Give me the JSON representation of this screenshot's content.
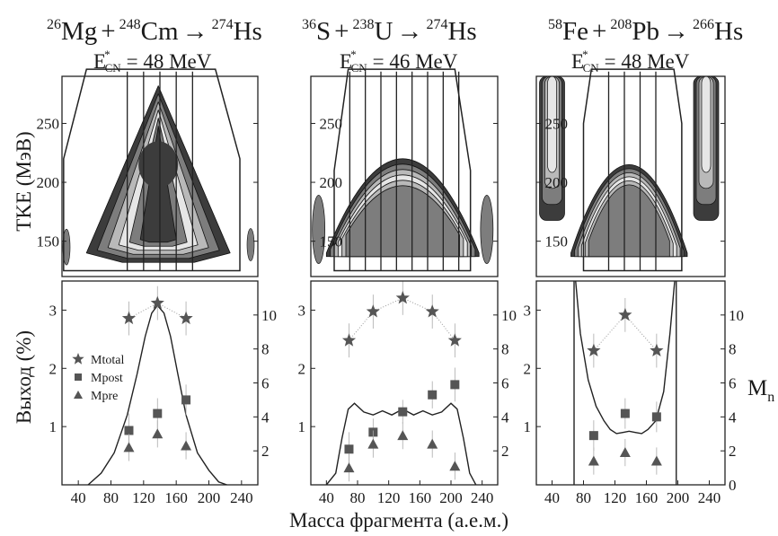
{
  "figure": {
    "xlabel": "Масса фрагмента (а.е.м.)",
    "ylabel_top": "TKE (МэВ)",
    "ylabel_bottom": "Выход (%)",
    "ylabel_right": "M",
    "ylabel_right_sub": "n"
  },
  "colors": {
    "frame": "#222222",
    "marker": "#555555",
    "curve": "#222222",
    "contour_dark": "#3c3c3c",
    "contour_mid": "#7d7d7d",
    "contour_light": "#b9b9b9",
    "contour_pale": "#e6e6e6"
  },
  "panels": [
    {
      "reaction": {
        "p_mass": "26",
        "p_sym": "Mg",
        "t_mass": "248",
        "t_sym": "Cm",
        "c_mass": "274",
        "c_sym": "Hs"
      },
      "energy": {
        "label": "E",
        "sup": "*",
        "sub": "CN",
        "value": "= 48 MeV"
      }
    },
    {
      "reaction": {
        "p_mass": "36",
        "p_sym": "S",
        "t_mass": "238",
        "t_sym": "U",
        "c_mass": "274",
        "c_sym": "Hs"
      },
      "energy": {
        "label": "E",
        "sup": "*",
        "sub": "CN",
        "value": "= 46 MeV"
      }
    },
    {
      "reaction": {
        "p_mass": "58",
        "p_sym": "Fe",
        "t_mass": "208",
        "t_sym": "Pb",
        "c_mass": "266",
        "c_sym": "Hs"
      },
      "energy": {
        "label": "E",
        "sup": "*",
        "sub": "CN",
        "value": "= 48 MeV"
      }
    }
  ],
  "chart_data": [
    {
      "type": "heatmap",
      "panel": "Mg+Cm TKE-mass",
      "ylabel": "TKE (МэВ)",
      "xlim": [
        20,
        260
      ],
      "ylim": [
        120,
        290
      ],
      "yticks": [
        150,
        200,
        250
      ],
      "gate_vertices": [
        [
          22,
          125
        ],
        [
          22,
          220
        ],
        [
          50,
          296
        ],
        [
          208,
          296
        ],
        [
          238,
          220
        ],
        [
          238,
          125
        ]
      ],
      "mass_bins": [
        100,
        120,
        140,
        160,
        180
      ]
    },
    {
      "type": "heatmap",
      "panel": "S+U TKE-mass",
      "xlim": [
        20,
        260
      ],
      "ylim": [
        120,
        290
      ],
      "yticks": [
        150,
        200,
        250
      ],
      "gate_vertices": [
        [
          50,
          125
        ],
        [
          50,
          210
        ],
        [
          68,
          296
        ],
        [
          205,
          296
        ],
        [
          225,
          210
        ],
        [
          225,
          125
        ]
      ],
      "mass_bins": [
        70,
        90,
        110,
        130,
        150,
        170,
        190,
        210
      ]
    },
    {
      "type": "heatmap",
      "panel": "Fe+Pb TKE-mass",
      "xlim": [
        20,
        260
      ],
      "ylim": [
        120,
        290
      ],
      "yticks": [
        150,
        200,
        250
      ],
      "gate_vertices": [
        [
          80,
          125
        ],
        [
          80,
          250
        ],
        [
          90,
          296
        ],
        [
          195,
          296
        ],
        [
          205,
          250
        ],
        [
          205,
          125
        ]
      ],
      "mass_bins": [
        112,
        132,
        152,
        172
      ]
    },
    {
      "type": "scatter",
      "panel": "Mg+Cm yield",
      "ylabel": "Выход (%)",
      "xlim": [
        20,
        260
      ],
      "ylim_left": [
        0,
        3.5
      ],
      "ylim_right": [
        0,
        12
      ],
      "xticks": [
        40,
        80,
        120,
        160,
        200,
        240
      ],
      "yticks_left": [
        1,
        2,
        3
      ],
      "yticks_right": [
        2,
        4,
        6,
        8,
        10
      ],
      "legend": [
        "Mtotal",
        "Mpost",
        "Mpre"
      ],
      "series": [
        {
          "name": "Mtotal",
          "marker": "star",
          "x": [
            102,
            137,
            172
          ],
          "y": [
            9.8,
            10.7,
            9.8
          ],
          "err": [
            1.0,
            1.0,
            1.0
          ]
        },
        {
          "name": "Mpost",
          "marker": "square",
          "x": [
            102,
            137,
            172
          ],
          "y": [
            3.2,
            4.2,
            5.0
          ],
          "err": [
            1.0,
            0.9,
            0.9
          ]
        },
        {
          "name": "Mpre",
          "marker": "triangle",
          "x": [
            102,
            137,
            172
          ],
          "y": [
            2.2,
            3.0,
            2.3
          ],
          "err": [
            0.8,
            0.8,
            0.8
          ]
        }
      ],
      "yield_curve": {
        "x": [
          52,
          68,
          84,
          100,
          112,
          122,
          130,
          137,
          145,
          153,
          162,
          172,
          186,
          200,
          212,
          222
        ],
        "y": [
          0.0,
          0.2,
          0.55,
          1.2,
          1.9,
          2.55,
          2.95,
          3.08,
          2.95,
          2.55,
          1.9,
          1.2,
          0.55,
          0.25,
          0.05,
          0.0
        ]
      }
    },
    {
      "type": "scatter",
      "panel": "S+U yield",
      "xlim": [
        20,
        260
      ],
      "ylim_left": [
        0,
        3.5
      ],
      "ylim_right": [
        0,
        12
      ],
      "xticks": [
        40,
        80,
        120,
        160,
        200,
        240
      ],
      "yticks_left": [
        1,
        2,
        3
      ],
      "yticks_right": [
        2,
        4,
        6,
        8,
        10
      ],
      "series": [
        {
          "name": "Mtotal",
          "marker": "star",
          "x": [
            69,
            100,
            138,
            176,
            205
          ],
          "y": [
            8.5,
            10.2,
            11.0,
            10.2,
            8.5
          ],
          "err": [
            1.0,
            1.0,
            1.0,
            1.0,
            1.0
          ]
        },
        {
          "name": "Mpost",
          "marker": "square",
          "x": [
            69,
            100,
            138,
            176,
            205
          ],
          "y": [
            2.1,
            3.1,
            4.3,
            5.3,
            5.9
          ],
          "err": [
            1.0,
            0.8,
            0.7,
            0.8,
            1.0
          ]
        },
        {
          "name": "Mpre",
          "marker": "triangle",
          "x": [
            69,
            100,
            138,
            176,
            205
          ],
          "y": [
            1.0,
            2.4,
            2.9,
            2.4,
            1.1
          ],
          "err": [
            0.8,
            0.8,
            0.8,
            0.8,
            0.8
          ]
        }
      ],
      "yield_curve": {
        "x": [
          40,
          52,
          60,
          68,
          76,
          88,
          100,
          112,
          124,
          138,
          152,
          164,
          176,
          188,
          200,
          208,
          216,
          224,
          232
        ],
        "y": [
          0.0,
          0.2,
          0.8,
          1.3,
          1.4,
          1.25,
          1.2,
          1.27,
          1.2,
          1.3,
          1.2,
          1.27,
          1.2,
          1.25,
          1.4,
          1.3,
          0.8,
          0.2,
          0.0
        ]
      }
    },
    {
      "type": "scatter",
      "panel": "Fe+Pb yield",
      "xlim": [
        20,
        260
      ],
      "ylim_left": [
        0,
        3.5
      ],
      "ylim_right": [
        0,
        12
      ],
      "xticks": [
        40,
        80,
        120,
        160,
        200,
        240
      ],
      "yticks_left": [
        1,
        2,
        3
      ],
      "yticks_right": [
        0,
        2,
        4,
        6,
        8,
        10
      ],
      "series": [
        {
          "name": "Mtotal",
          "marker": "star",
          "x": [
            93,
            133,
            173
          ],
          "y": [
            7.9,
            10.0,
            7.9
          ],
          "err": [
            1.0,
            1.0,
            1.0
          ]
        },
        {
          "name": "Mpost",
          "marker": "square",
          "x": [
            93,
            133,
            173
          ],
          "y": [
            2.9,
            4.2,
            4.0
          ],
          "err": [
            0.9,
            0.9,
            0.9
          ]
        },
        {
          "name": "Mpre",
          "marker": "triangle",
          "x": [
            93,
            133,
            173
          ],
          "y": [
            1.4,
            1.9,
            1.4
          ],
          "err": [
            0.8,
            0.8,
            0.8
          ]
        }
      ],
      "yield_curve": {
        "x": [
          68,
          76,
          86,
          96,
          106,
          114,
          122,
          130,
          138,
          146,
          154,
          162,
          172,
          182,
          190,
          198
        ],
        "y": [
          3.8,
          2.6,
          1.8,
          1.35,
          1.1,
          0.95,
          0.88,
          0.9,
          0.92,
          0.9,
          0.88,
          0.95,
          1.1,
          1.6,
          2.6,
          3.8
        ]
      },
      "vertical_lines": [
        68,
        198
      ]
    }
  ]
}
